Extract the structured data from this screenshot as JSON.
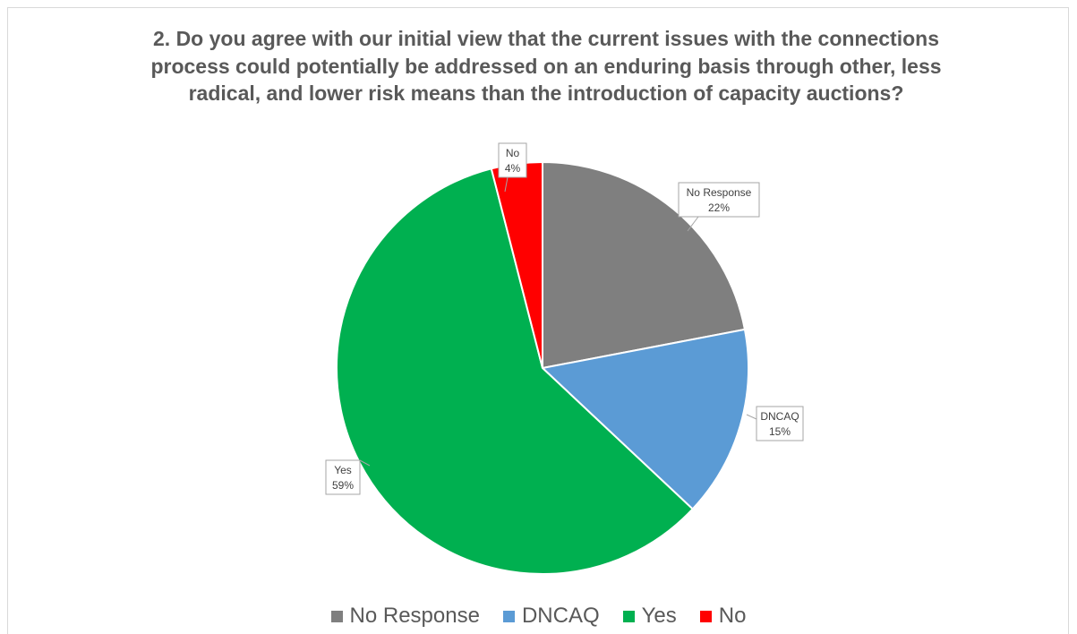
{
  "chart_data": {
    "type": "pie",
    "title": "2. Do you agree with our initial view that the current issues with the connections process could potentially be addressed on an enduring basis through other, less radical, and lower risk means than the introduction of capacity auctions?",
    "slices": [
      {
        "name": "No Response",
        "value": 22,
        "label": "22%",
        "color": "#7f7f7f"
      },
      {
        "name": "DNCAQ",
        "value": 15,
        "label": "15%",
        "color": "#5b9bd5"
      },
      {
        "name": "Yes",
        "value": 59,
        "label": "59%",
        "color": "#00b050"
      },
      {
        "name": "No",
        "value": 4,
        "label": "4%",
        "color": "#ff0000"
      }
    ],
    "start_angle": "12 o'clock",
    "direction": "clockwise",
    "legend_position": "bottom"
  }
}
